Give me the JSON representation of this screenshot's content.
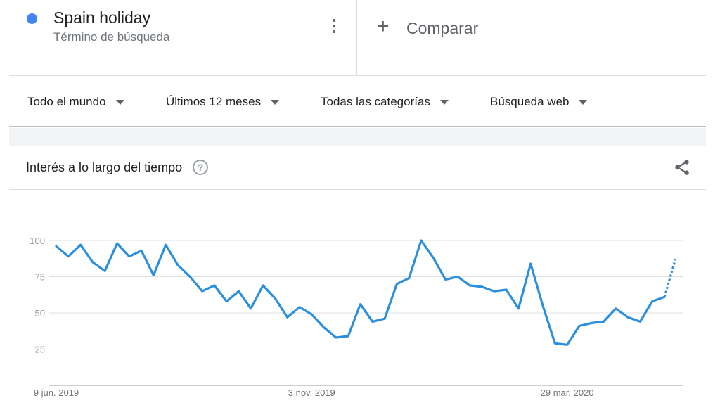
{
  "search_term": {
    "title": "Spain holiday",
    "subtitle": "Término de búsqueda",
    "dot_color": "#4285f4",
    "menu_icon": "more-vert-icon"
  },
  "compare": {
    "icon": "plus-icon",
    "label": "Comparar"
  },
  "filters": [
    {
      "label": "Todo el mundo"
    },
    {
      "label": "Últimos 12 meses"
    },
    {
      "label": "Todas las categorías"
    },
    {
      "label": "Búsqueda web"
    }
  ],
  "chart_card": {
    "title": "Interés a lo largo del tiempo",
    "help_icon": "help-icon",
    "share_icon": "share-icon"
  },
  "chart_data": {
    "type": "line",
    "title": "",
    "xlabel": "",
    "ylabel": "",
    "ylim": [
      0,
      100
    ],
    "yticks": [
      25,
      50,
      75,
      100
    ],
    "grid": true,
    "line_color": "#2b8fde",
    "x_tick_labels": [
      "9 jun. 2019",
      "3 nov. 2019",
      "29 mar. 2020"
    ],
    "x_tick_weeks": [
      0,
      21,
      42
    ],
    "series": [
      {
        "values": [
          96,
          89,
          97,
          85,
          79,
          98,
          89,
          93,
          76,
          97,
          83,
          75,
          65,
          69,
          58,
          65,
          53,
          69,
          60,
          47,
          54,
          49,
          40,
          33,
          34,
          56,
          44,
          46,
          70,
          74,
          100,
          88,
          73,
          75,
          69,
          68,
          65,
          66,
          53,
          84,
          55,
          29,
          28,
          41,
          43,
          44,
          53,
          47,
          44,
          58,
          61
        ],
        "partial_value": 87
      }
    ]
  }
}
